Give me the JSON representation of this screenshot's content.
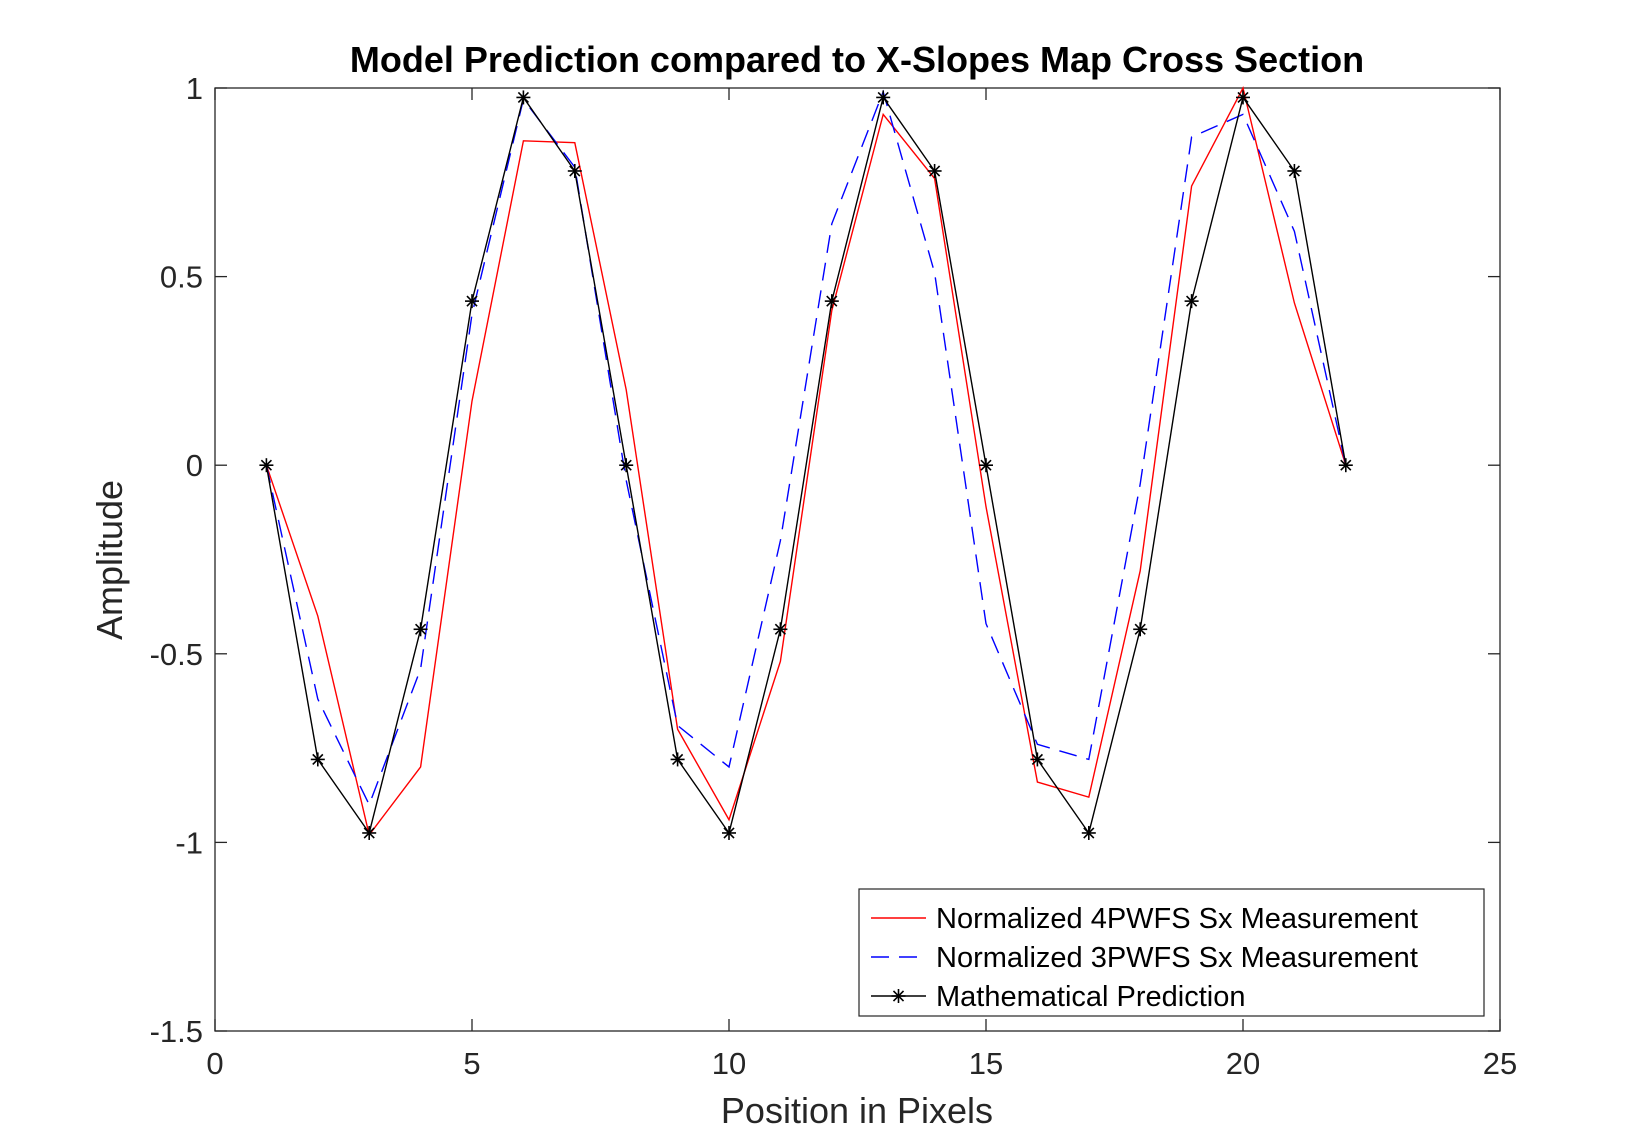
{
  "chart_data": {
    "type": "line",
    "title": "Model Prediction compared to X-Slopes Map Cross Section",
    "xlabel": "Position in Pixels",
    "ylabel": "Amplitude",
    "xlim": [
      0,
      25
    ],
    "ylim": [
      -1.5,
      1
    ],
    "xticks": [
      0,
      5,
      10,
      15,
      20,
      25
    ],
    "yticks": [
      -1.5,
      -1,
      -0.5,
      0,
      0.5,
      1
    ],
    "xtick_labels": [
      "0",
      "5",
      "10",
      "15",
      "20",
      "25"
    ],
    "ytick_labels": [
      "-1.5",
      "-1",
      "-0.5",
      "0",
      "0.5",
      "1"
    ],
    "grid": false,
    "legend_position": "bottom-right",
    "x": [
      1,
      2,
      3,
      4,
      5,
      6,
      7,
      8,
      9,
      10,
      11,
      12,
      13,
      14,
      15,
      16,
      17,
      18,
      19,
      20,
      21,
      22
    ],
    "series": [
      {
        "name": "Normalized 4PWFS Sx Measurement",
        "color": "#ff0000",
        "style": "solid",
        "marker": "none",
        "values": [
          0,
          -0.4,
          -0.98,
          -0.8,
          0.17,
          0.86,
          0.855,
          0.2,
          -0.7,
          -0.94,
          -0.52,
          0.41,
          0.93,
          0.76,
          -0.11,
          -0.84,
          -0.88,
          -0.28,
          0.74,
          1.0,
          0.43,
          0
        ]
      },
      {
        "name": "Normalized 3PWFS Sx Measurement",
        "color": "#0000ff",
        "style": "dashed",
        "marker": "none",
        "values": [
          0,
          -0.62,
          -0.9,
          -0.54,
          0.4,
          0.97,
          0.79,
          -0.04,
          -0.69,
          -0.8,
          -0.2,
          0.64,
          0.99,
          0.51,
          -0.42,
          -0.74,
          -0.78,
          -0.05,
          0.87,
          0.93,
          0.62,
          0
        ]
      },
      {
        "name": "Mathematical Prediction",
        "color": "#000000",
        "style": "solid",
        "marker": "asterisk",
        "values": [
          0,
          -0.78,
          -0.975,
          -0.435,
          0.435,
          0.975,
          0.78,
          0,
          -0.78,
          -0.975,
          -0.435,
          0.435,
          0.975,
          0.78,
          0,
          -0.78,
          -0.975,
          -0.435,
          0.435,
          0.975,
          0.78,
          0
        ]
      }
    ]
  }
}
